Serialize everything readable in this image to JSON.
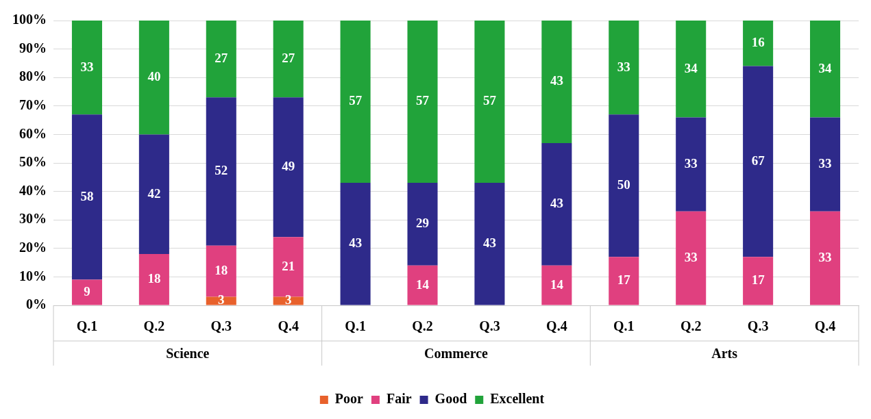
{
  "chart_data": {
    "type": "bar",
    "stacked": true,
    "categories": [
      "Q.1",
      "Q.2",
      "Q.3",
      "Q.4",
      "Q.1",
      "Q.2",
      "Q.3",
      "Q.4",
      "Q.1",
      "Q.2",
      "Q.3",
      "Q.4"
    ],
    "series": [
      {
        "name": "Poor",
        "color": "#e8612c",
        "values": [
          null,
          null,
          3,
          3,
          null,
          null,
          null,
          null,
          null,
          null,
          null,
          null
        ]
      },
      {
        "name": "Fair",
        "color": "#e0407f",
        "values": [
          9,
          18,
          18,
          21,
          null,
          14,
          null,
          14,
          17,
          33,
          17,
          33
        ]
      },
      {
        "name": "Good",
        "color": "#2e2a8a",
        "values": [
          58,
          42,
          52,
          49,
          43,
          29,
          43,
          43,
          50,
          33,
          67,
          33
        ]
      },
      {
        "name": "Excellent",
        "color": "#21a33a",
        "values": [
          33,
          40,
          27,
          27,
          57,
          57,
          57,
          43,
          33,
          34,
          16,
          34
        ]
      }
    ],
    "ylim": [
      0,
      100
    ],
    "yticks": [
      {
        "value": 0,
        "label": "0%"
      },
      {
        "value": 10,
        "label": "10%"
      },
      {
        "value": 20,
        "label": "20%"
      },
      {
        "value": 30,
        "label": "30%"
      },
      {
        "value": 40,
        "label": "40%"
      },
      {
        "value": 50,
        "label": "50%"
      },
      {
        "value": 60,
        "label": "60%"
      },
      {
        "value": 70,
        "label": "70%"
      },
      {
        "value": 80,
        "label": "80%"
      },
      {
        "value": 90,
        "label": "90%"
      },
      {
        "value": 100,
        "label": "100%"
      }
    ],
    "grid": "y",
    "legend": "bottom",
    "data_labels": true,
    "annotations": [
      "Science",
      "Commerce",
      "Arts"
    ]
  }
}
